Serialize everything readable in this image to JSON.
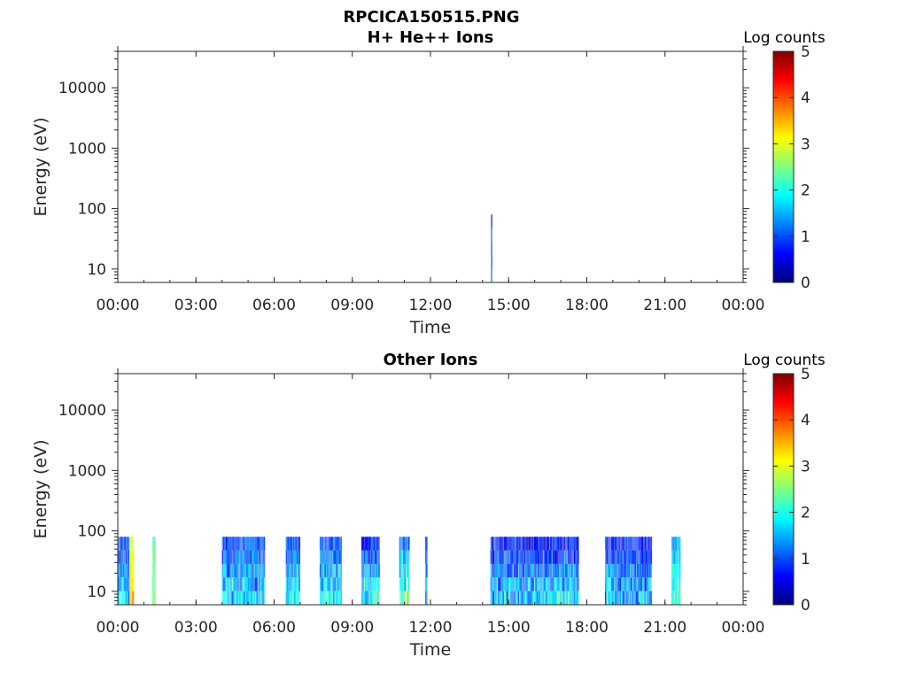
{
  "figure": {
    "title": "RPCICA150515.PNG"
  },
  "chart_data": [
    {
      "type": "heatmap",
      "title": "H+ He++ Ions",
      "xlabel": "Time",
      "ylabel": "Energy (eV)",
      "x_range_hours": [
        0,
        24
      ],
      "x_tick_labels": [
        "00:00",
        "03:00",
        "06:00",
        "09:00",
        "12:00",
        "15:00",
        "18:00",
        "21:00",
        "00:00"
      ],
      "y_scale": "log",
      "ylim": [
        6,
        40000
      ],
      "y_tick_values": [
        10,
        100,
        1000,
        10000
      ],
      "y_tick_labels": [
        "10",
        "100",
        "1000",
        "10000"
      ],
      "colorbar": {
        "label": "Log counts",
        "range": [
          0,
          5
        ],
        "ticks": [
          "0",
          "1",
          "2",
          "3",
          "4",
          "5"
        ],
        "colormap": "jet"
      },
      "grid": false,
      "segments": [
        {
          "start_h": 14.33,
          "end_h": 14.36,
          "max_energy_ev": 80,
          "level_low": 0.5,
          "level_high": 1.2
        }
      ]
    },
    {
      "type": "heatmap",
      "title": "Other Ions",
      "xlabel": "Time",
      "ylabel": "Energy (eV)",
      "x_range_hours": [
        0,
        24
      ],
      "x_tick_labels": [
        "00:00",
        "03:00",
        "06:00",
        "09:00",
        "12:00",
        "15:00",
        "18:00",
        "21:00",
        "00:00"
      ],
      "y_scale": "log",
      "ylim": [
        6,
        40000
      ],
      "y_tick_values": [
        10,
        100,
        1000,
        10000
      ],
      "y_tick_labels": [
        "10",
        "100",
        "1000",
        "10000"
      ],
      "colorbar": {
        "label": "Log counts",
        "range": [
          0,
          5
        ],
        "ticks": [
          "0",
          "1",
          "2",
          "3",
          "4",
          "5"
        ],
        "colormap": "jet"
      },
      "grid": false,
      "segments": [
        {
          "start_h": 0.0,
          "end_h": 0.45,
          "max_energy_ev": 80,
          "level_low": 0.6,
          "level_high": 2.2
        },
        {
          "start_h": 0.45,
          "end_h": 0.62,
          "max_energy_ev": 80,
          "level_low": 2.6,
          "level_high": 3.9
        },
        {
          "start_h": 1.33,
          "end_h": 1.45,
          "max_energy_ev": 80,
          "level_low": 2.0,
          "level_high": 2.9
        },
        {
          "start_h": 4.0,
          "end_h": 5.65,
          "max_energy_ev": 80,
          "level_low": 0.5,
          "level_high": 2.4
        },
        {
          "start_h": 6.45,
          "end_h": 7.0,
          "max_energy_ev": 80,
          "level_low": 0.6,
          "level_high": 2.4
        },
        {
          "start_h": 7.75,
          "end_h": 8.6,
          "max_energy_ev": 80,
          "level_low": 0.6,
          "level_high": 2.4
        },
        {
          "start_h": 9.35,
          "end_h": 10.05,
          "max_energy_ev": 80,
          "level_low": 0.3,
          "level_high": 2.6
        },
        {
          "start_h": 10.8,
          "end_h": 11.2,
          "max_energy_ev": 80,
          "level_low": 0.8,
          "level_high": 3.2
        },
        {
          "start_h": 11.8,
          "end_h": 11.88,
          "max_energy_ev": 80,
          "level_low": 0.6,
          "level_high": 1.8
        },
        {
          "start_h": 14.3,
          "end_h": 17.7,
          "max_energy_ev": 80,
          "level_low": 0.2,
          "level_high": 2.3
        },
        {
          "start_h": 18.7,
          "end_h": 20.5,
          "max_energy_ev": 80,
          "level_low": 0.3,
          "level_high": 2.2
        },
        {
          "start_h": 21.25,
          "end_h": 21.6,
          "max_energy_ev": 80,
          "level_low": 1.2,
          "level_high": 2.6
        }
      ]
    }
  ]
}
